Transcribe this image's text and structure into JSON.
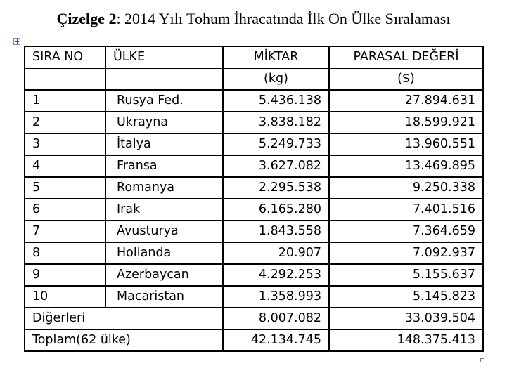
{
  "title": {
    "label": "Çizelge 2",
    "text": ": 2014 Yılı Tohum İhracatında İlk On Ülke Sıralaması"
  },
  "table": {
    "headers": {
      "sira_no": "SIRA NO",
      "ulke": "ÜLKE",
      "miktar": "MİKTAR",
      "parasal": "PARASAL DEĞERİ",
      "miktar_unit": "(kg)",
      "parasal_unit": "($)"
    },
    "rows": [
      {
        "no": "1",
        "country": "Rusya Fed.",
        "amount": "5.436.138",
        "value": "27.894.631"
      },
      {
        "no": "2",
        "country": "Ukrayna",
        "amount": "3.838.182",
        "value": "18.599.921"
      },
      {
        "no": "3",
        "country": "İtalya",
        "amount": "5.249.733",
        "value": "13.960.551"
      },
      {
        "no": "4",
        "country": "Fransa",
        "amount": "3.627.082",
        "value": "13.469.895"
      },
      {
        "no": "5",
        "country": "Romanya",
        "amount": "2.295.538",
        "value": "9.250.338"
      },
      {
        "no": "6",
        "country": "Irak",
        "amount": "6.165.280",
        "value": "7.401.516"
      },
      {
        "no": "7",
        "country": "Avusturya",
        "amount": "1.843.558",
        "value": "7.364.659"
      },
      {
        "no": "8",
        "country": "Hollanda",
        "amount": "20.907",
        "value": "7.092.937"
      },
      {
        "no": "9",
        "country": "Azerbaycan",
        "amount": "4.292.253",
        "value": "5.155.637"
      },
      {
        "no": "10",
        "country": "Macaristan",
        "amount": "1.358.993",
        "value": "5.145.823"
      }
    ],
    "others": {
      "label": "Diğerleri",
      "amount": "8.007.082",
      "value": "33.039.504"
    },
    "total": {
      "label": "Toplam(62 ülke)",
      "amount": "42.134.745",
      "value": "148.375.413"
    }
  }
}
